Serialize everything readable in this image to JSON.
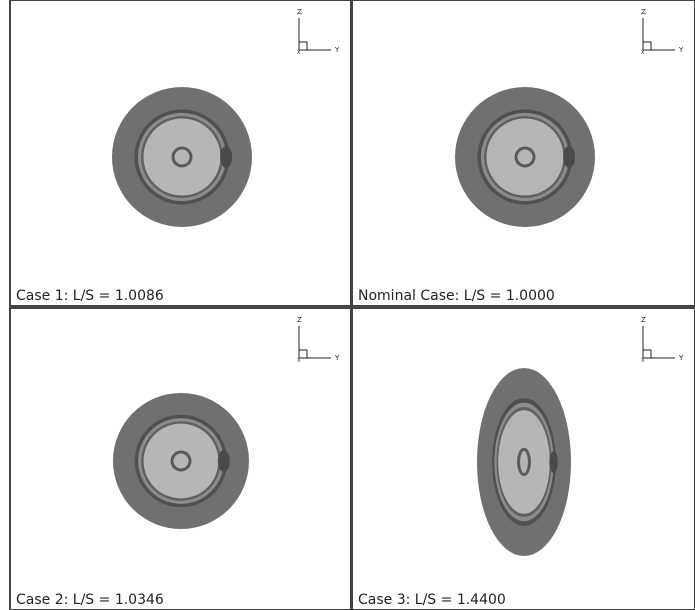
{
  "panels": [
    {
      "label": "Case 1: L/S = 1.0086"
    },
    {
      "label": "Nominal Case: L/S = 1.0000"
    },
    {
      "label": "Case 2: L/S = 1.0346"
    },
    {
      "label": "Case 3: L/S = 1.4400"
    }
  ],
  "axis_triad": {
    "z": "Z",
    "y": "Y",
    "x": "X"
  }
}
